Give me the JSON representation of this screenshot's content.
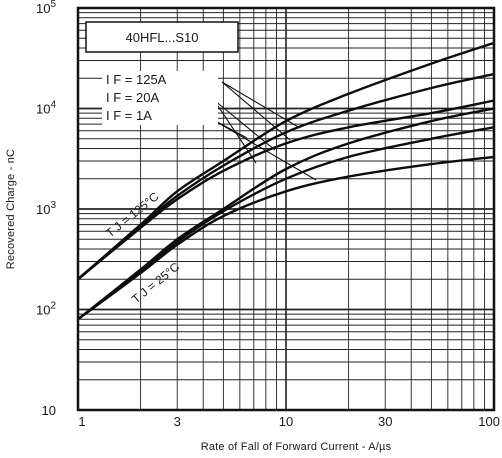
{
  "chart_data": {
    "type": "line",
    "title": "",
    "xlabel": "Rate of Fall of Forward Current - A/µs",
    "ylabel": "Recovered Charge - nC",
    "xscale": "log",
    "yscale": "log",
    "xlim": [
      1,
      100
    ],
    "ylim": [
      10,
      100000
    ],
    "grid": true,
    "x_ticks": [
      {
        "value": 1,
        "label": "1"
      },
      {
        "value": 3,
        "label": "3"
      },
      {
        "value": 10,
        "label": "10"
      },
      {
        "value": 30,
        "label": "30"
      },
      {
        "value": 100,
        "label": "100"
      }
    ],
    "y_ticks": [
      {
        "value": 10,
        "base": "10",
        "exp": ""
      },
      {
        "value": 100,
        "base": "10",
        "exp": "2"
      },
      {
        "value": 1000,
        "base": "10",
        "exp": "3"
      },
      {
        "value": 10000,
        "base": "10",
        "exp": "4"
      },
      {
        "value": 100000,
        "base": "10",
        "exp": "5"
      }
    ],
    "annotations": {
      "device": "40HFL...S10",
      "if_lines": [
        "I F = 125A",
        "I F = 20A",
        "I F = 1A"
      ],
      "tj_high": "T J = 125°C",
      "tj_low": "T J = 25°C"
    },
    "series": [
      {
        "group": "TJ = 125°C",
        "if": "125A",
        "x": [
          1,
          2,
          3,
          5,
          10,
          20,
          50,
          100
        ],
        "y": [
          200,
          700,
          1500,
          3000,
          7500,
          14000,
          28000,
          45000
        ]
      },
      {
        "group": "TJ = 125°C",
        "if": "20A",
        "x": [
          1,
          2,
          3,
          5,
          10,
          20,
          50,
          100
        ],
        "y": [
          200,
          680,
          1350,
          2700,
          5800,
          9500,
          16000,
          22000
        ]
      },
      {
        "group": "TJ = 125°C",
        "if": "1A",
        "x": [
          1,
          2,
          3,
          5,
          10,
          20,
          50,
          100
        ],
        "y": [
          200,
          650,
          1250,
          2400,
          4500,
          6500,
          9000,
          12000
        ]
      },
      {
        "group": "TJ = 25°C",
        "if": "125A",
        "x": [
          1,
          2,
          3,
          5,
          10,
          20,
          50,
          100
        ],
        "y": [
          80,
          250,
          500,
          1000,
          2500,
          4500,
          7500,
          10000
        ]
      },
      {
        "group": "TJ = 25°C",
        "if": "20A",
        "x": [
          1,
          2,
          3,
          5,
          10,
          20,
          50,
          100
        ],
        "y": [
          80,
          240,
          470,
          950,
          2000,
          3300,
          5000,
          6500
        ]
      },
      {
        "group": "TJ = 25°C",
        "if": "1A",
        "x": [
          1,
          2,
          3,
          5,
          10,
          20,
          50,
          100
        ],
        "y": [
          80,
          230,
          440,
          850,
          1500,
          2100,
          2800,
          3300
        ]
      }
    ]
  }
}
